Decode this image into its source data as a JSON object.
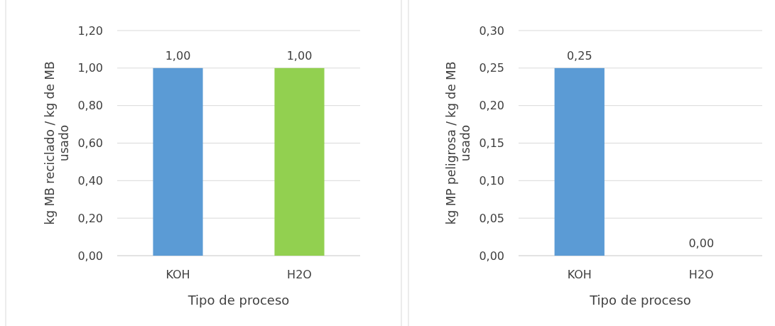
{
  "chart_data": [
    {
      "type": "bar",
      "categories": [
        "KOH",
        "H2O"
      ],
      "values": [
        1.0,
        1.0
      ],
      "colors": [
        "#5b9bd5",
        "#92d050"
      ],
      "value_labels": [
        "1,00",
        "1,00"
      ],
      "xlabel": "Tipo de proceso",
      "ylabel": "kg MB reciclado / kg de MB usado",
      "ylim": [
        0,
        1.2
      ],
      "yticks": [
        {
          "value": 0,
          "label": "0,00"
        },
        {
          "value": 0.2,
          "label": "0,20"
        },
        {
          "value": 0.4,
          "label": "0,40"
        },
        {
          "value": 0.6,
          "label": "0,60"
        },
        {
          "value": 0.8,
          "label": "0,80"
        },
        {
          "value": 1.0,
          "label": "1,00"
        },
        {
          "value": 1.2,
          "label": "1,20"
        }
      ],
      "grid": "y"
    },
    {
      "type": "bar",
      "categories": [
        "KOH",
        "H2O"
      ],
      "values": [
        0.25,
        0
      ],
      "colors": [
        "#5b9bd5",
        "#92d050"
      ],
      "value_labels": [
        "0,25",
        "0,00"
      ],
      "xlabel": "Tipo de proceso",
      "ylabel": "kg MP peligrosa / kg de MB usado",
      "ylim": [
        0,
        0.3
      ],
      "yticks": [
        {
          "value": 0,
          "label": "0,00"
        },
        {
          "value": 0.05,
          "label": "0,05"
        },
        {
          "value": 0.1,
          "label": "0,10"
        },
        {
          "value": 0.15,
          "label": "0,15"
        },
        {
          "value": 0.2,
          "label": "0,20"
        },
        {
          "value": 0.25,
          "label": "0,25"
        },
        {
          "value": 0.3,
          "label": "0,30"
        }
      ],
      "grid": "y"
    }
  ]
}
